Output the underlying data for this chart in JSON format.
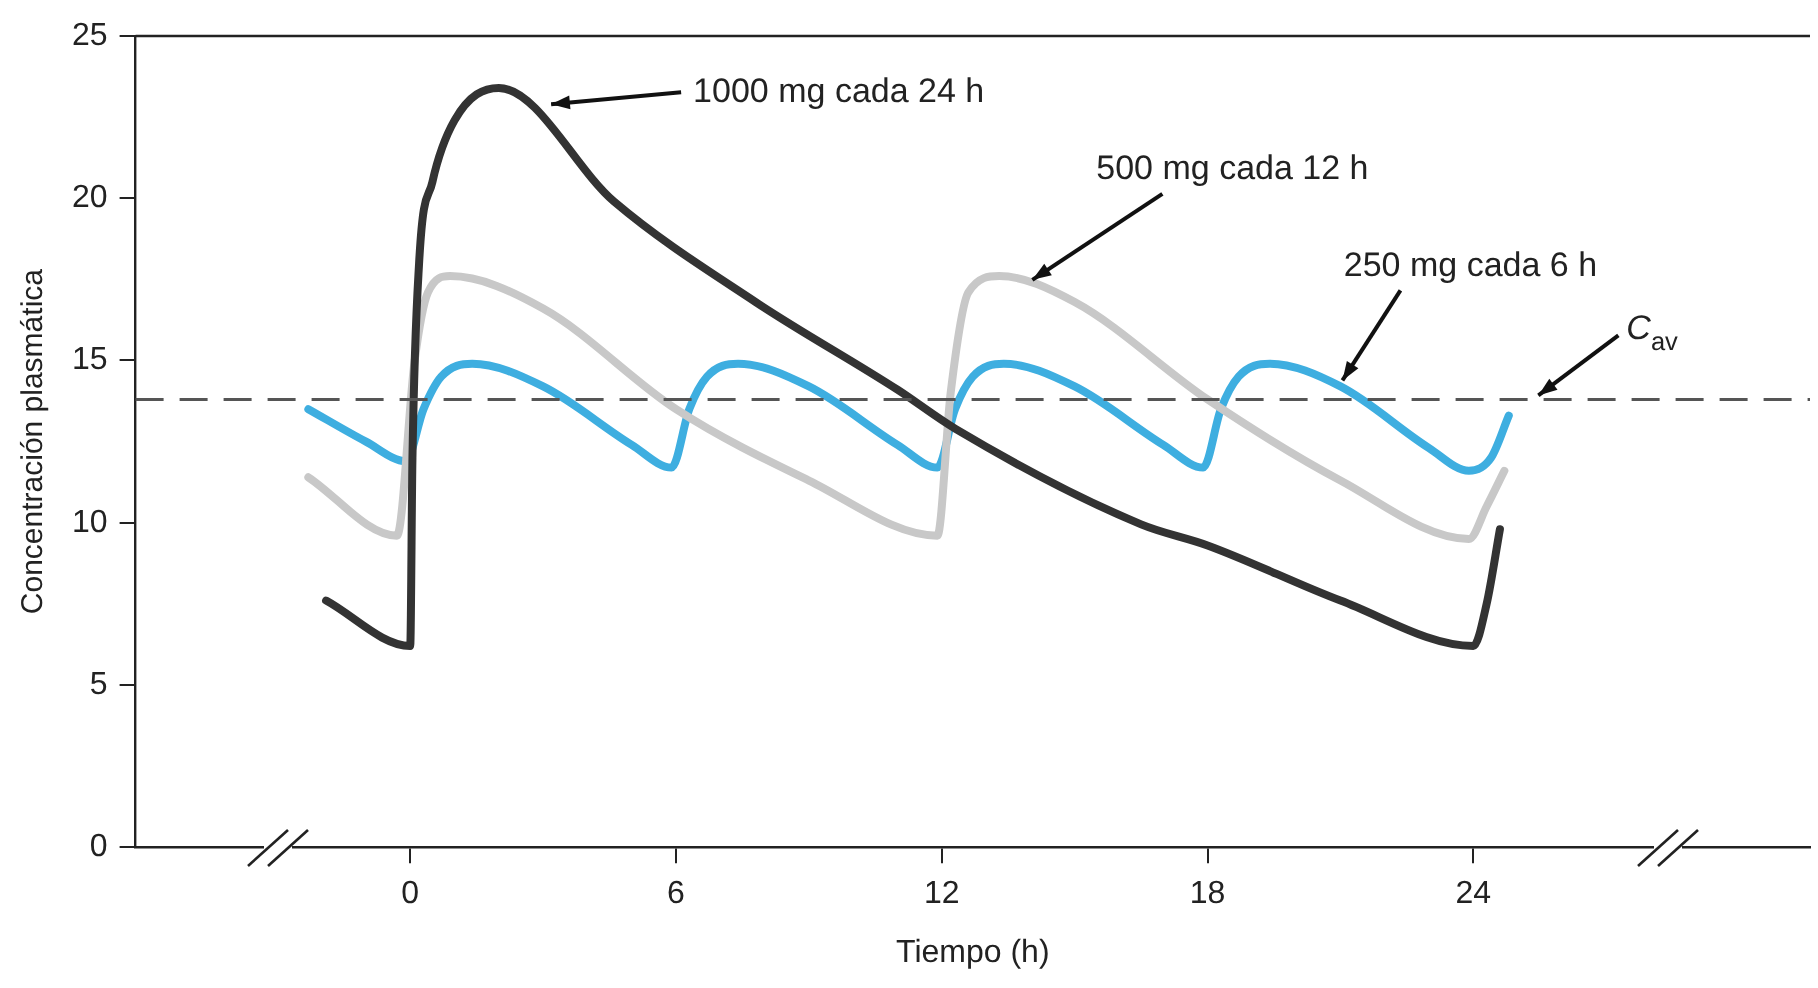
{
  "chart_data": {
    "type": "line",
    "xlabel": "Tiempo (h)",
    "ylabel": "Concentración plasmática",
    "xlim": [
      -6.2,
      31.6
    ],
    "xticks": [
      0,
      6,
      12,
      18,
      24
    ],
    "ylim": [
      0,
      25
    ],
    "yticks": [
      0,
      5,
      10,
      15,
      20,
      25
    ],
    "grid": false,
    "legend": false,
    "marker": "none",
    "line_style": "solid",
    "series": [
      {
        "color": "#333333",
        "x": [
          -1.9,
          0,
          0.05,
          0.2,
          0.5,
          1.0,
          2.0,
          4.6,
          7.8,
          11.0,
          12.3,
          16.5,
          18,
          21,
          24,
          24.3,
          24.6
        ],
        "values": [
          7.6,
          6.2,
          12,
          18,
          20.5,
          22.4,
          23.4,
          19.9,
          16.8,
          14.1,
          12.9,
          9.95,
          9.3,
          7.6,
          6.2,
          7.5,
          9.8
        ]
      },
      {
        "color": "#c8c8c8",
        "x": [
          -2.3,
          -0.3,
          0.1,
          0.4,
          0.9,
          3,
          6,
          9,
          11.9,
          12.2,
          12.6,
          13.3,
          15,
          18,
          21,
          23.9,
          24.3,
          24.7
        ],
        "values": [
          11.4,
          9.6,
          15,
          17.1,
          17.6,
          16.6,
          13.5,
          11.3,
          9.6,
          14,
          17.1,
          17.6,
          16.8,
          13.8,
          11.3,
          9.5,
          10.5,
          11.6
        ]
      },
      {
        "color": "#3eaee0",
        "x": [
          -2.3,
          -1,
          -0.1,
          0.3,
          0.7,
          1.4,
          3,
          5,
          5.9,
          6.3,
          6.7,
          7.4,
          9,
          11,
          11.9,
          12.3,
          12.7,
          13.4,
          15,
          17,
          17.9,
          18.3,
          18.7,
          19.4,
          21,
          23,
          23.9,
          24.4,
          24.8
        ],
        "values": [
          13.5,
          12.5,
          11.9,
          13.5,
          14.5,
          14.9,
          14.2,
          12.4,
          11.7,
          13.5,
          14.5,
          14.9,
          14.2,
          12.4,
          11.7,
          13.5,
          14.5,
          14.9,
          14.2,
          12.4,
          11.7,
          13.5,
          14.5,
          14.9,
          14.2,
          12.3,
          11.6,
          12.0,
          13.3
        ]
      }
    ],
    "ref_lines": [
      {
        "axis": "y",
        "value": 13.8,
        "label": "C$_{av}$",
        "color": "#555555",
        "line_style": "dashed"
      }
    ],
    "annotations": [
      {
        "text": "1000 mg cada 24 h",
        "x": 3.0,
        "y": 22.9
      },
      {
        "text": "500 mg cada 12 h",
        "x": 14.0,
        "y": 17.3
      },
      {
        "text": "250 mg cada 6 h",
        "x": 21.0,
        "y": 14.2
      }
    ]
  }
}
